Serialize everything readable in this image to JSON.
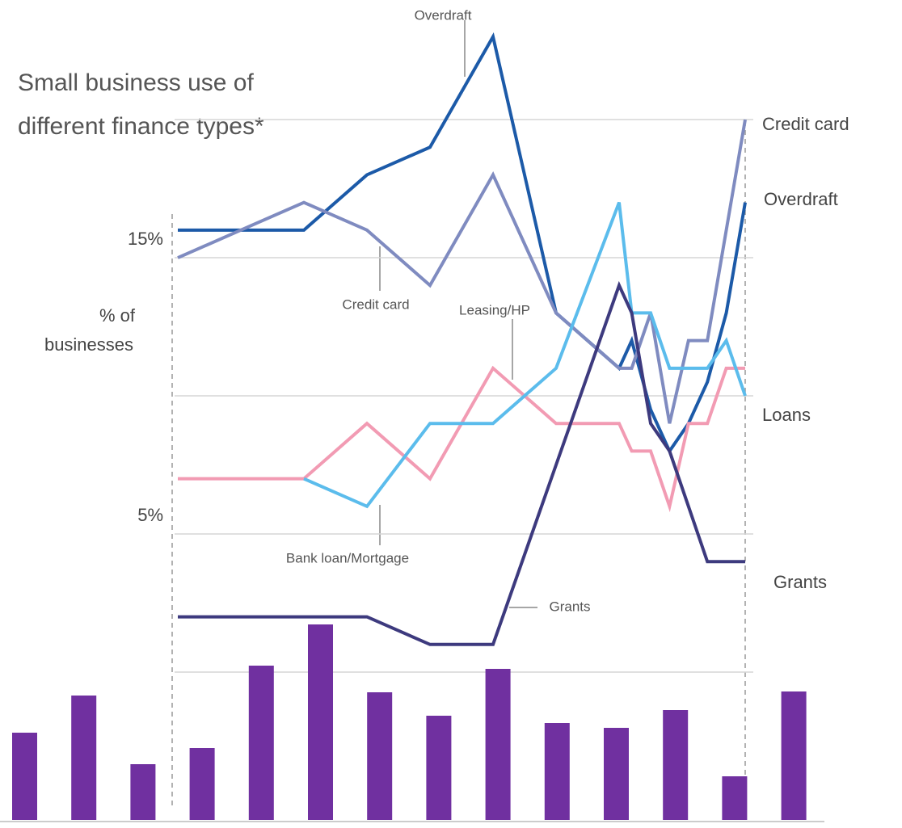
{
  "chart_data": [
    {
      "type": "line",
      "title": "Small business use of different finance types*",
      "y_label": "% of businesses",
      "x": [
        0,
        1,
        2,
        3,
        4,
        5,
        6,
        7,
        7.2,
        7.5,
        7.8,
        8.1,
        8.4,
        8.7,
        9
      ],
      "xlim": [
        0,
        9
      ],
      "ylim": [
        0,
        24.3
      ],
      "yticks": [
        {
          "value": 15,
          "label": "15%"
        },
        {
          "value": 5,
          "label": "5%"
        }
      ],
      "grid_values": [
        0,
        5,
        10,
        15,
        20
      ],
      "series": [
        {
          "name": "Overdraft",
          "color": "#1c5aa8",
          "values": [
            16,
            16,
            16,
            18,
            19,
            23,
            13,
            11,
            12,
            9.5,
            8,
            9,
            10.5,
            13,
            17
          ]
        },
        {
          "name": "Credit card",
          "color": "#7f8bc0",
          "values": [
            15,
            16,
            17,
            16,
            14,
            18,
            13,
            11,
            11,
            13,
            9,
            12,
            12,
            16,
            20
          ]
        },
        {
          "name": "Leasing/HP",
          "color": "#f29bb3",
          "values": [
            7,
            7,
            7,
            9,
            7,
            11,
            9,
            9,
            8,
            8,
            6,
            9,
            9,
            11,
            11
          ]
        },
        {
          "name": "Bank loan/Mortgage",
          "color": "#5bbcec",
          "values": [
            null,
            null,
            7,
            6,
            9,
            9,
            11,
            17,
            13,
            13,
            11,
            11,
            11,
            12,
            10
          ]
        },
        {
          "name": "Grants",
          "color": "#3d3a7e",
          "values": [
            2,
            2,
            2,
            2,
            1,
            1,
            7.5,
            14,
            13,
            9,
            8,
            6,
            4,
            4,
            4
          ]
        }
      ],
      "right_labels": [
        "Credit card",
        "Overdraft",
        "Loans",
        "Grants"
      ]
    },
    {
      "type": "bar",
      "color": "#7030a0",
      "ylim": [
        0,
        260
      ],
      "values": [
        108,
        154,
        69,
        89,
        191,
        242,
        158,
        129,
        187,
        120,
        114,
        136,
        54,
        159
      ]
    }
  ]
}
